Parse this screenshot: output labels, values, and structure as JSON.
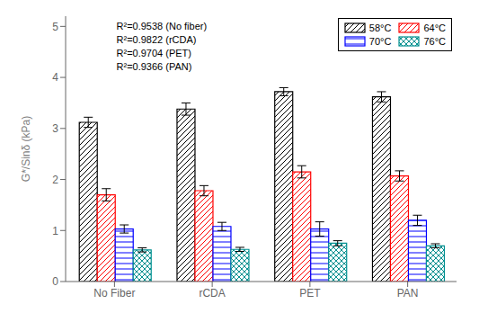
{
  "chart_data": {
    "type": "bar",
    "categories": [
      "No Fiber",
      "rCDA",
      "PET",
      "PAN"
    ],
    "series": [
      {
        "name": "58°C",
        "color": "black",
        "values": [
          3.12,
          3.38,
          3.72,
          3.62
        ],
        "errors": [
          0.1,
          0.12,
          0.08,
          0.1
        ]
      },
      {
        "name": "64°C",
        "color": "red",
        "values": [
          1.7,
          1.78,
          2.15,
          2.07
        ],
        "errors": [
          0.12,
          0.1,
          0.12,
          0.1
        ]
      },
      {
        "name": "70°C",
        "color": "blue",
        "values": [
          1.03,
          1.08,
          1.03,
          1.2
        ],
        "errors": [
          0.08,
          0.08,
          0.14,
          0.1
        ]
      },
      {
        "name": "76°C",
        "color": "#009090",
        "values": [
          0.62,
          0.63,
          0.75,
          0.7
        ],
        "errors": [
          0.04,
          0.04,
          0.05,
          0.04
        ]
      }
    ],
    "ylabel": "G*/Sinδ  (kPa)",
    "ylim": [
      0,
      5.2
    ],
    "yticks": [
      0,
      1,
      2,
      3,
      4,
      5
    ],
    "annotations": [
      "R²=0.9538 (No fiber)",
      "R²=0.9822 (rCDA)",
      "R²=0.9704 (PET)",
      "R²=0.9366 (PAN)"
    ],
    "legend": "upper right",
    "grid": false
  }
}
